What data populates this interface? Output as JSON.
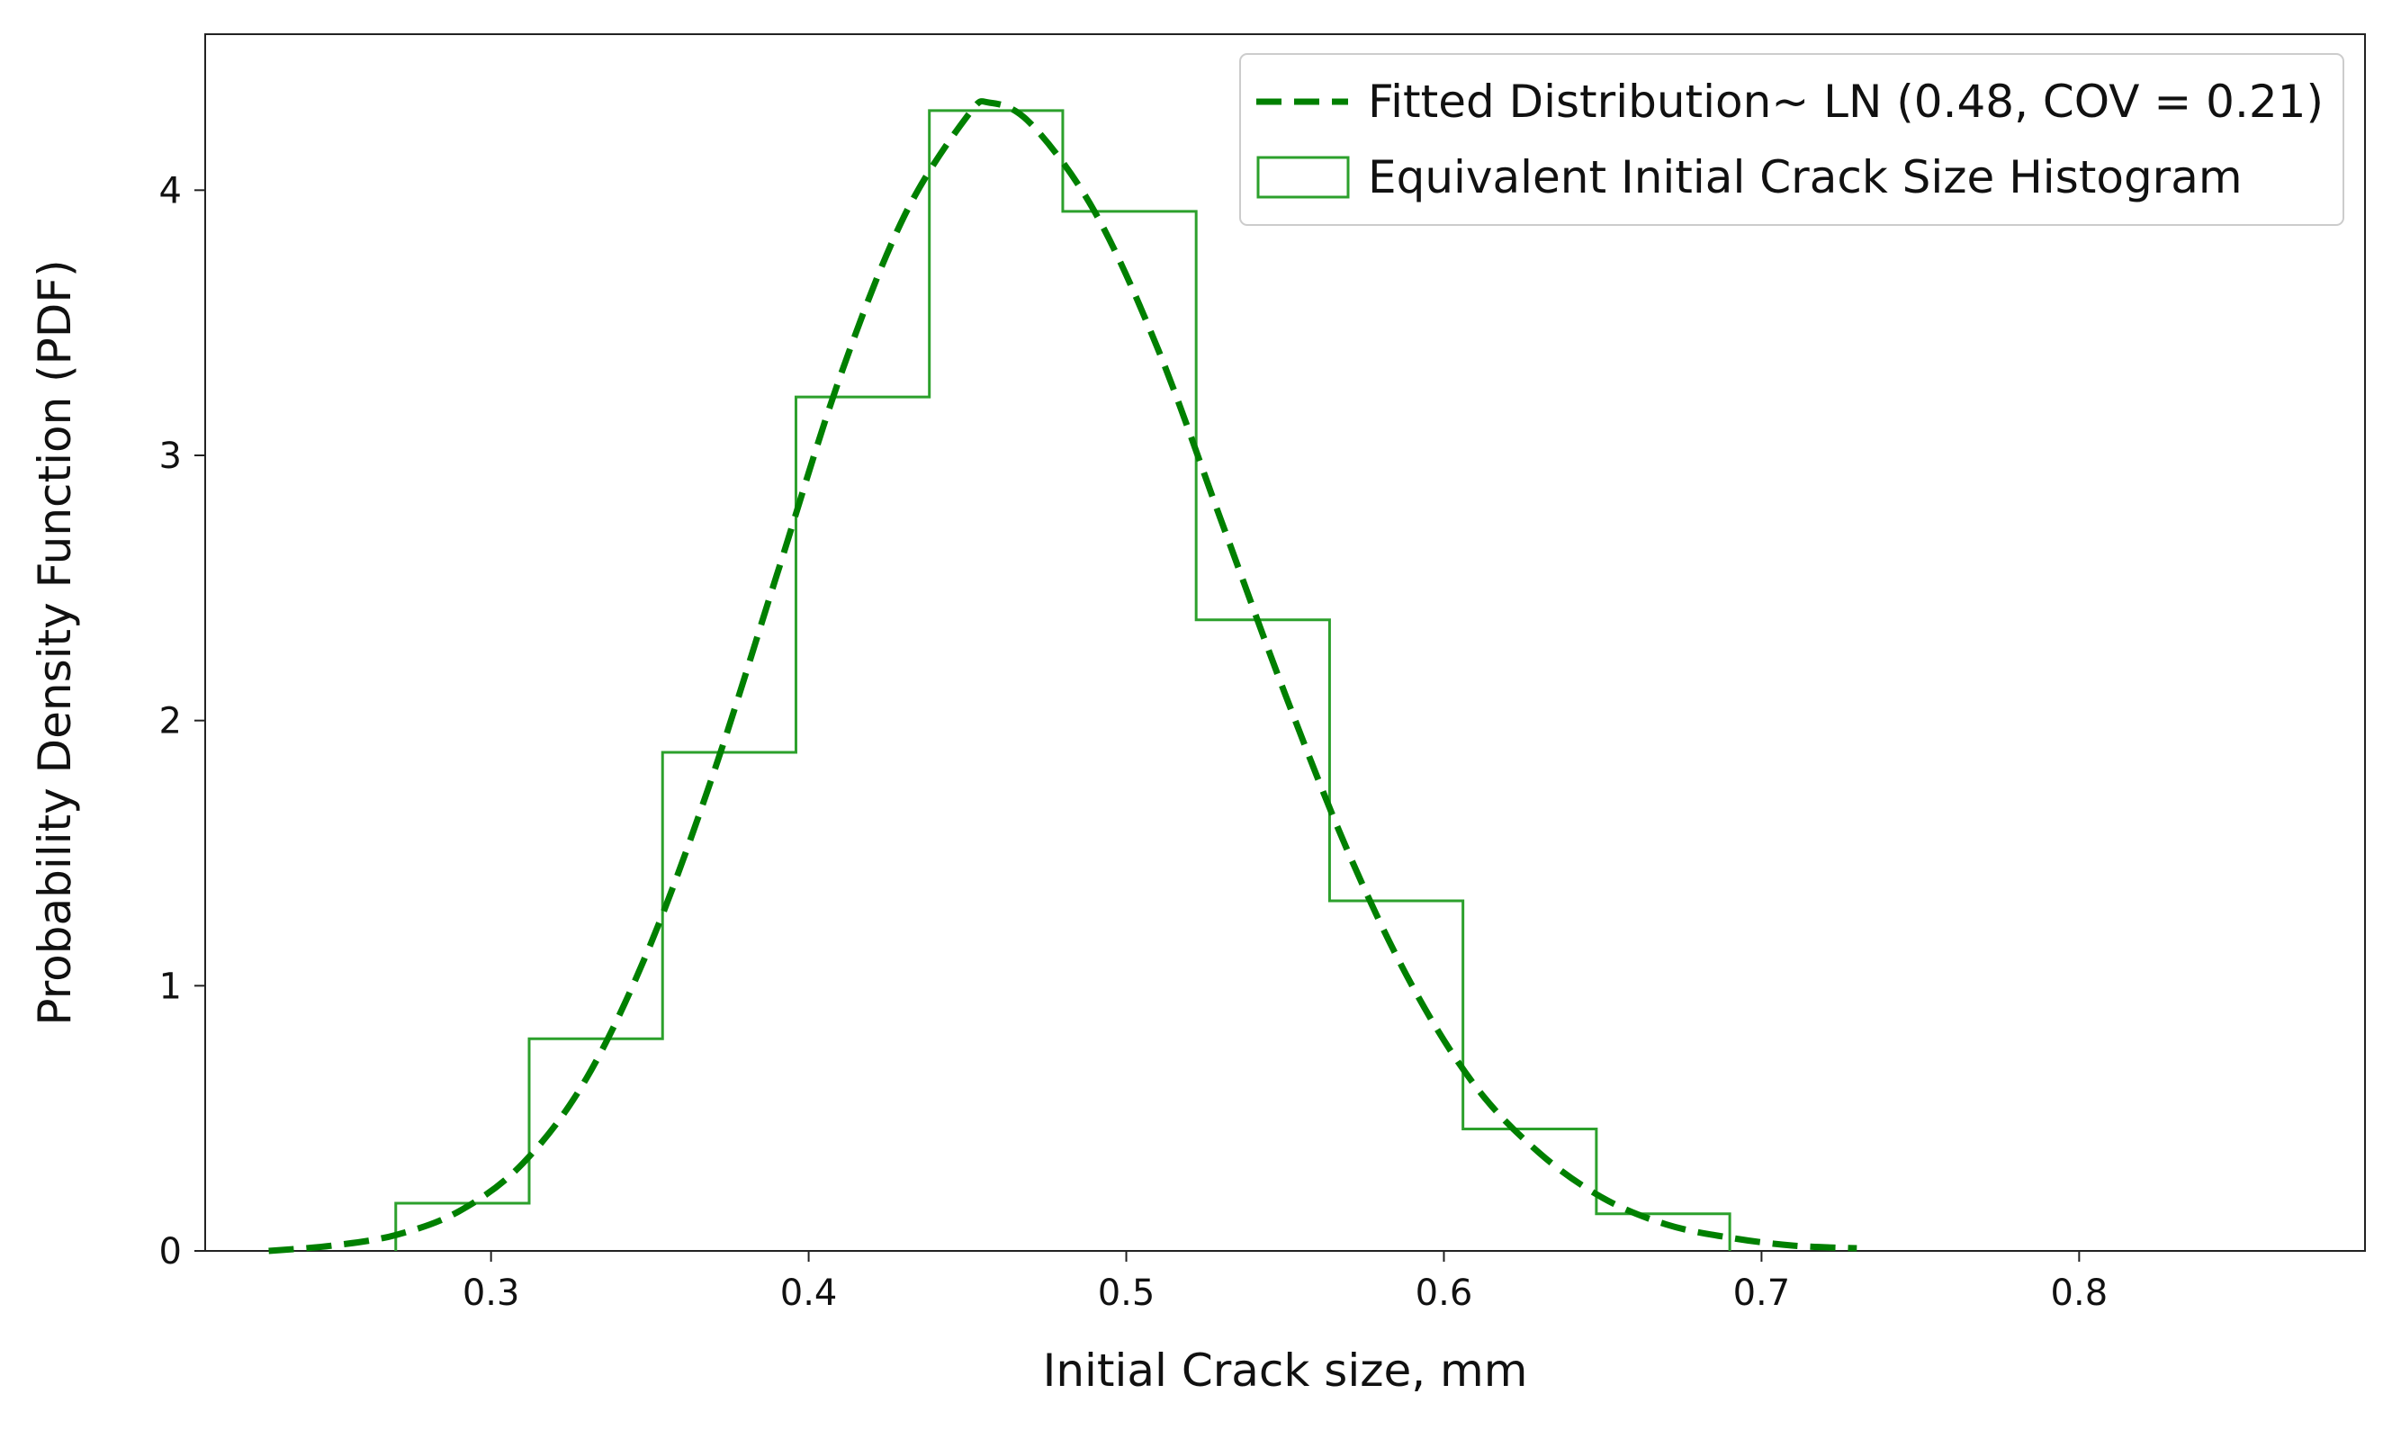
{
  "chart_data": {
    "type": "histogram+line",
    "xlabel": "Initial Crack size, mm",
    "ylabel": "Probability Density Function (PDF)",
    "xlim": [
      0.21,
      0.89
    ],
    "ylim": [
      0,
      4.5
    ],
    "xticks": [
      0.3,
      0.4,
      0.5,
      0.6,
      0.7,
      0.8
    ],
    "xtick_labels": [
      "0.3",
      "0.4",
      "0.5",
      "0.6",
      "0.7",
      "0.8"
    ],
    "yticks": [
      0,
      1,
      2,
      3,
      4
    ],
    "ytick_labels": [
      "0",
      "1",
      "2",
      "3",
      "4"
    ],
    "grid": false,
    "legend_position": "top-right",
    "colors": {
      "fit": "#008000",
      "histogram": "#2ca02c"
    },
    "fitted_distribution": {
      "name": "Fitted Distribution~ LN (0.48, COV = 0.21)",
      "style": "dashed",
      "mean": 0.48,
      "cov": 0.21,
      "x_range": [
        0.23,
        0.73
      ],
      "points": [
        [
          0.23,
          0.0
        ],
        [
          0.25,
          0.02
        ],
        [
          0.27,
          0.06
        ],
        [
          0.29,
          0.15
        ],
        [
          0.31,
          0.33
        ],
        [
          0.33,
          0.65
        ],
        [
          0.35,
          1.15
        ],
        [
          0.37,
          1.8
        ],
        [
          0.39,
          2.55
        ],
        [
          0.41,
          3.3
        ],
        [
          0.43,
          3.9
        ],
        [
          0.45,
          4.28
        ],
        [
          0.457,
          4.33
        ],
        [
          0.47,
          4.25
        ],
        [
          0.49,
          3.92
        ],
        [
          0.51,
          3.4
        ],
        [
          0.53,
          2.75
        ],
        [
          0.55,
          2.1
        ],
        [
          0.57,
          1.5
        ],
        [
          0.59,
          1.0
        ],
        [
          0.61,
          0.62
        ],
        [
          0.63,
          0.37
        ],
        [
          0.65,
          0.2
        ],
        [
          0.67,
          0.1
        ],
        [
          0.69,
          0.05
        ],
        [
          0.71,
          0.02
        ],
        [
          0.73,
          0.01
        ]
      ]
    },
    "histogram": {
      "name": "Equivalent Initial Crack Size Histogram",
      "bin_edges": [
        0.27,
        0.312,
        0.354,
        0.396,
        0.438,
        0.48,
        0.522,
        0.564,
        0.606,
        0.648,
        0.69
      ],
      "densities": [
        0.18,
        0.8,
        1.88,
        3.22,
        4.3,
        3.92,
        2.38,
        1.32,
        0.46,
        0.14
      ]
    }
  }
}
